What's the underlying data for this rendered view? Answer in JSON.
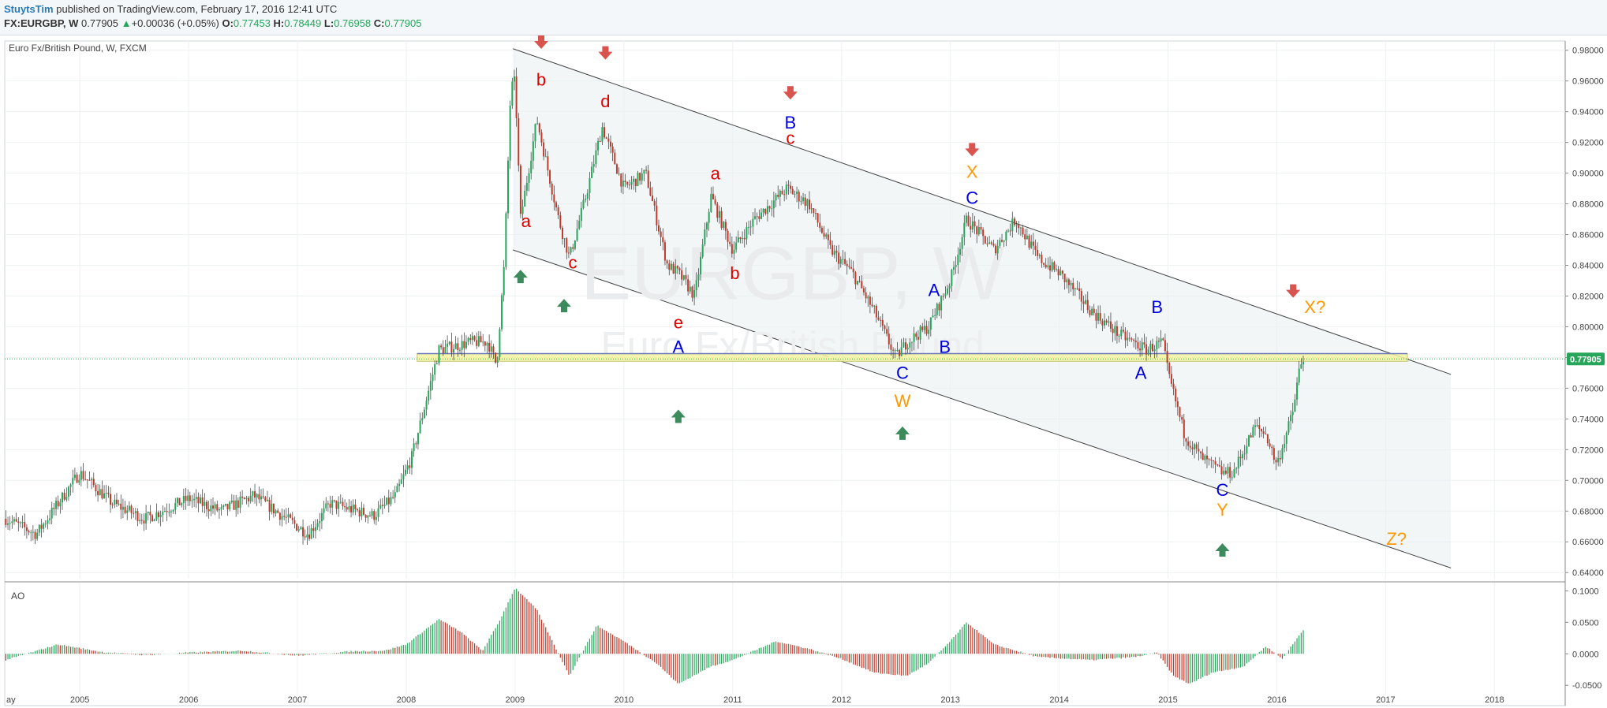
{
  "header": {
    "author": "StuytsTim",
    "published": "published on TradingView.com, February 17, 2016 12:41 UTC",
    "symbol": "FX:EURGBP, W",
    "last": "0.77905",
    "change": "+0.00036 (+0.05%)",
    "open_label": "O:",
    "open": "0.77453",
    "high_label": "H:",
    "high": "0.78449",
    "low_label": "L:",
    "low": "0.76958",
    "close_label": "C:",
    "close": "0.77905",
    "up_arrow": "▲"
  },
  "chart_data": {
    "type": "candlestick",
    "title": "Euro Fx/British Pound, W, FXCM",
    "watermark": {
      "main": "EURGBP, W",
      "sub": "Euro Fx/British Pound"
    },
    "last_price_label": "0.77905",
    "y_ticks": [
      "0.98000",
      "0.96000",
      "0.94000",
      "0.92000",
      "0.90000",
      "0.88000",
      "0.86000",
      "0.84000",
      "0.82000",
      "0.80000",
      "0.78000",
      "0.76000",
      "0.74000",
      "0.72000",
      "0.70000",
      "0.68000",
      "0.66000",
      "0.64000"
    ],
    "ylim": [
      0.636,
      0.986
    ],
    "x_ticks": [
      "ay",
      "2005",
      "2006",
      "2007",
      "2008",
      "2009",
      "2010",
      "2011",
      "2012",
      "2013",
      "2014",
      "2015",
      "2016",
      "2017",
      "2018"
    ],
    "xlim": [
      2004.31,
      2018.65
    ],
    "colors": {
      "up": "#26a65b",
      "down": "#c0392b",
      "wave_red": "#e00000",
      "wave_blue": "#0000dd",
      "wave_orange": "#ff9900",
      "arrow_down": "#d9534f",
      "arrow_up": "#3d8b5d"
    },
    "price_path": [
      [
        2004.32,
        0.675
      ],
      [
        2004.6,
        0.665
      ],
      [
        2005.0,
        0.705
      ],
      [
        2005.3,
        0.685
      ],
      [
        2005.6,
        0.675
      ],
      [
        2006.0,
        0.688
      ],
      [
        2006.3,
        0.68
      ],
      [
        2006.6,
        0.69
      ],
      [
        2006.9,
        0.675
      ],
      [
        2007.1,
        0.665
      ],
      [
        2007.3,
        0.685
      ],
      [
        2007.7,
        0.677
      ],
      [
        2007.9,
        0.69
      ],
      [
        2008.05,
        0.715
      ],
      [
        2008.3,
        0.785
      ],
      [
        2008.6,
        0.79
      ],
      [
        2008.75,
        0.79
      ],
      [
        2008.83,
        0.775
      ],
      [
        2008.9,
        0.84
      ],
      [
        2008.96,
        0.955
      ],
      [
        2009.0,
        0.96
      ],
      [
        2009.05,
        0.87
      ],
      [
        2009.2,
        0.935
      ],
      [
        2009.4,
        0.87
      ],
      [
        2009.5,
        0.845
      ],
      [
        2009.65,
        0.885
      ],
      [
        2009.8,
        0.93
      ],
      [
        2010.0,
        0.89
      ],
      [
        2010.2,
        0.9
      ],
      [
        2010.4,
        0.84
      ],
      [
        2010.5,
        0.835
      ],
      [
        2010.65,
        0.82
      ],
      [
        2010.8,
        0.885
      ],
      [
        2011.0,
        0.85
      ],
      [
        2011.2,
        0.87
      ],
      [
        2011.5,
        0.89
      ],
      [
        2011.7,
        0.88
      ],
      [
        2011.9,
        0.85
      ],
      [
        2012.1,
        0.835
      ],
      [
        2012.3,
        0.81
      ],
      [
        2012.5,
        0.78
      ],
      [
        2012.6,
        0.79
      ],
      [
        2012.8,
        0.8
      ],
      [
        2013.0,
        0.83
      ],
      [
        2013.15,
        0.87
      ],
      [
        2013.4,
        0.85
      ],
      [
        2013.6,
        0.87
      ],
      [
        2013.8,
        0.845
      ],
      [
        2014.0,
        0.835
      ],
      [
        2014.3,
        0.81
      ],
      [
        2014.55,
        0.795
      ],
      [
        2014.8,
        0.785
      ],
      [
        2014.95,
        0.79
      ],
      [
        2015.0,
        0.77
      ],
      [
        2015.15,
        0.73
      ],
      [
        2015.3,
        0.715
      ],
      [
        2015.5,
        0.705
      ],
      [
        2015.6,
        0.705
      ],
      [
        2015.8,
        0.735
      ],
      [
        2015.9,
        0.73
      ],
      [
        2016.0,
        0.71
      ],
      [
        2016.15,
        0.745
      ],
      [
        2016.2,
        0.77
      ],
      [
        2016.25,
        0.78
      ]
    ],
    "channel": {
      "upper": [
        [
          2008.98,
          0.981
        ],
        [
          2017.6,
          0.769
        ]
      ],
      "lower": [
        [
          2008.98,
          0.85
        ],
        [
          2017.6,
          0.643
        ]
      ],
      "fill": "#e9f0f2"
    },
    "support_zone": {
      "x": [
        2008.1,
        2017.2
      ],
      "y": [
        0.7775,
        0.7825
      ],
      "fill": "#f3f3a0",
      "line": 0.7825
    },
    "wave_labels": [
      {
        "t": "b",
        "x": 2009.24,
        "y": 0.957,
        "c": "wave_red"
      },
      {
        "t": "d",
        "x": 2009.83,
        "y": 0.943,
        "c": "wave_red"
      },
      {
        "t": "a",
        "x": 2009.1,
        "y": 0.865,
        "c": "wave_red"
      },
      {
        "t": "c",
        "x": 2009.53,
        "y": 0.838,
        "c": "wave_red"
      },
      {
        "t": "e",
        "x": 2010.5,
        "y": 0.799,
        "c": "wave_red"
      },
      {
        "t": "a",
        "x": 2010.84,
        "y": 0.896,
        "c": "wave_red"
      },
      {
        "t": "b",
        "x": 2011.02,
        "y": 0.831,
        "c": "wave_red"
      },
      {
        "t": "c",
        "x": 2011.53,
        "y": 0.919,
        "c": "wave_red"
      },
      {
        "t": "B",
        "x": 2011.53,
        "y": 0.929,
        "c": "wave_blue"
      },
      {
        "t": "A",
        "x": 2010.5,
        "y": 0.783,
        "c": "wave_blue"
      },
      {
        "t": "C",
        "x": 2012.56,
        "y": 0.766,
        "c": "wave_blue"
      },
      {
        "t": "A",
        "x": 2012.85,
        "y": 0.82,
        "c": "wave_blue"
      },
      {
        "t": "B",
        "x": 2012.95,
        "y": 0.783,
        "c": "wave_blue"
      },
      {
        "t": "C",
        "x": 2013.2,
        "y": 0.88,
        "c": "wave_blue"
      },
      {
        "t": "B",
        "x": 2014.9,
        "y": 0.809,
        "c": "wave_blue"
      },
      {
        "t": "A",
        "x": 2014.75,
        "y": 0.766,
        "c": "wave_blue"
      },
      {
        "t": "C",
        "x": 2015.5,
        "y": 0.69,
        "c": "wave_blue"
      },
      {
        "t": "W",
        "x": 2012.56,
        "y": 0.748,
        "c": "wave_orange"
      },
      {
        "t": "X",
        "x": 2013.2,
        "y": 0.897,
        "c": "wave_orange"
      },
      {
        "t": "Y",
        "x": 2015.5,
        "y": 0.677,
        "c": "wave_orange"
      },
      {
        "t": "X?",
        "x": 2016.35,
        "y": 0.809,
        "c": "wave_orange"
      },
      {
        "t": "Z?",
        "x": 2017.1,
        "y": 0.658,
        "c": "wave_orange"
      }
    ],
    "down_arrows": [
      [
        2009.24,
        0.985
      ],
      [
        2009.83,
        0.978
      ],
      [
        2011.53,
        0.952
      ],
      [
        2013.2,
        0.915
      ],
      [
        2016.15,
        0.823
      ]
    ],
    "up_arrows": [
      [
        2009.05,
        0.833
      ],
      [
        2009.45,
        0.814
      ],
      [
        2010.5,
        0.742
      ],
      [
        2012.56,
        0.731
      ],
      [
        2015.5,
        0.655
      ]
    ],
    "oscillator": {
      "name": "AO",
      "y_ticks": [
        "0.1000",
        "0.0500",
        "0.0000",
        "-0.0500"
      ],
      "ylim": [
        -0.066,
        0.108
      ],
      "path": [
        [
          2004.32,
          -0.01
        ],
        [
          2004.8,
          0.015
        ],
        [
          2005.2,
          0.003
        ],
        [
          2005.6,
          -0.002
        ],
        [
          2006.0,
          0.002
        ],
        [
          2006.5,
          0.005
        ],
        [
          2007.0,
          -0.003
        ],
        [
          2007.5,
          0.004
        ],
        [
          2007.8,
          0.005
        ],
        [
          2008.0,
          0.015
        ],
        [
          2008.3,
          0.055
        ],
        [
          2008.5,
          0.035
        ],
        [
          2008.7,
          0.005
        ],
        [
          2008.85,
          0.05
        ],
        [
          2009.0,
          0.105
        ],
        [
          2009.2,
          0.07
        ],
        [
          2009.5,
          -0.035
        ],
        [
          2009.75,
          0.045
        ],
        [
          2010.0,
          0.02
        ],
        [
          2010.3,
          -0.015
        ],
        [
          2010.5,
          -0.048
        ],
        [
          2010.8,
          -0.02
        ],
        [
          2011.0,
          -0.01
        ],
        [
          2011.4,
          0.02
        ],
        [
          2011.7,
          0.008
        ],
        [
          2012.0,
          -0.008
        ],
        [
          2012.3,
          -0.03
        ],
        [
          2012.6,
          -0.035
        ],
        [
          2012.8,
          -0.015
        ],
        [
          2013.0,
          0.02
        ],
        [
          2013.15,
          0.05
        ],
        [
          2013.4,
          0.015
        ],
        [
          2013.8,
          -0.005
        ],
        [
          2014.3,
          -0.01
        ],
        [
          2014.7,
          -0.005
        ],
        [
          2014.9,
          0.002
        ],
        [
          2015.05,
          -0.035
        ],
        [
          2015.2,
          -0.048
        ],
        [
          2015.4,
          -0.03
        ],
        [
          2015.7,
          -0.02
        ],
        [
          2015.9,
          0.012
        ],
        [
          2016.05,
          -0.008
        ],
        [
          2016.25,
          0.04
        ]
      ]
    }
  }
}
